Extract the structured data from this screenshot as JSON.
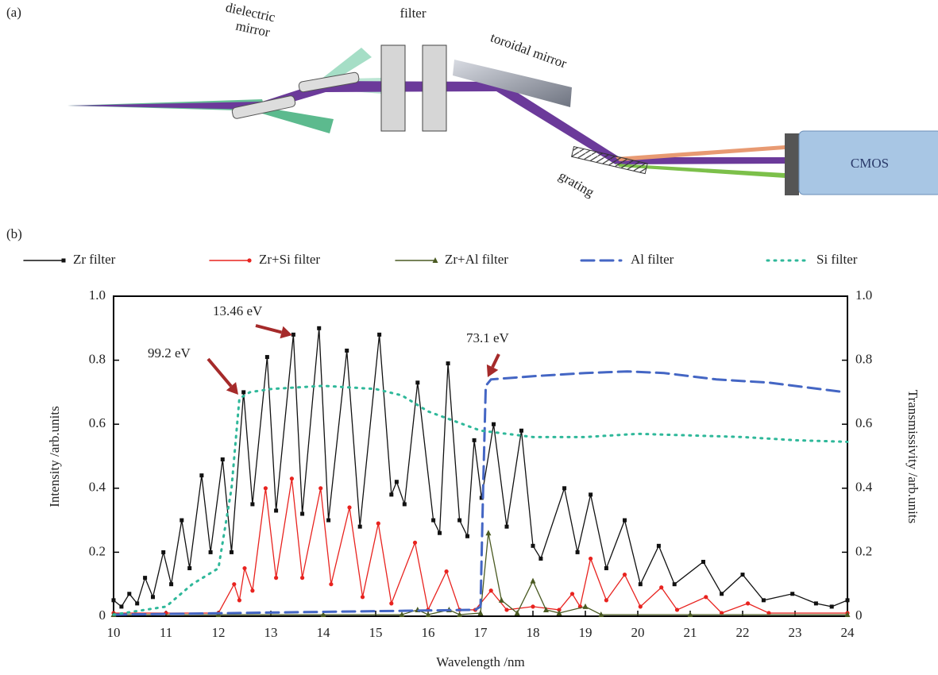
{
  "panel_a": {
    "label": "(a)",
    "mirror_label_1": "dielectric",
    "mirror_label_2": "mirror",
    "filter_label": "filter",
    "toroidal_label": "toroidal mirror",
    "grating_label": "grating",
    "detector_label": "CMOS"
  },
  "chart_data": {
    "type": "line",
    "panel_label": "(b)",
    "xlabel": "Wavelength /nm",
    "ylabel": "Intensity /arb.units",
    "y2label": "Transmissivity /arb.units",
    "xlim": [
      10,
      24
    ],
    "xticks": [
      10,
      11,
      12,
      13,
      14,
      15,
      16,
      17,
      18,
      19,
      20,
      21,
      22,
      23,
      24
    ],
    "ylim": [
      0,
      1
    ],
    "yticks": [
      0,
      0.2,
      0.4,
      0.6,
      0.8,
      {
        "value": 1,
        "label": "1.0"
      }
    ],
    "y2lim": [
      0,
      1
    ],
    "y2ticks": [
      0,
      0.2,
      0.4,
      0.6,
      0.8,
      {
        "value": 1,
        "label": "1.0"
      }
    ],
    "annotations": [
      "99.2 eV",
      "13.46 eV",
      "73.1 eV"
    ],
    "series": [
      {
        "name": "Zr filter",
        "color": "#111111",
        "marker": "square",
        "style": "solid",
        "x": [
          10.0,
          10.15,
          10.3,
          10.45,
          10.6,
          10.75,
          10.95,
          11.1,
          11.3,
          11.45,
          11.68,
          11.85,
          12.08,
          12.25,
          12.48,
          12.65,
          12.93,
          13.1,
          13.43,
          13.6,
          13.92,
          14.1,
          14.45,
          14.7,
          15.07,
          15.3,
          15.4,
          15.55,
          15.8,
          16.1,
          16.22,
          16.38,
          16.6,
          16.75,
          16.88,
          17.02,
          17.25,
          17.5,
          17.78,
          18.0,
          18.15,
          18.6,
          18.85,
          19.1,
          19.4,
          19.75,
          20.05,
          20.4,
          20.7,
          21.25,
          21.6,
          22.0,
          22.4,
          22.95,
          23.4,
          23.7,
          24.0
        ],
        "values": [
          0.05,
          0.03,
          0.07,
          0.04,
          0.12,
          0.06,
          0.2,
          0.1,
          0.3,
          0.15,
          0.44,
          0.2,
          0.49,
          0.2,
          0.7,
          0.35,
          0.81,
          0.33,
          0.88,
          0.32,
          0.9,
          0.3,
          0.83,
          0.28,
          0.88,
          0.38,
          0.42,
          0.35,
          0.73,
          0.3,
          0.26,
          0.79,
          0.3,
          0.25,
          0.55,
          0.37,
          0.6,
          0.28,
          0.58,
          0.22,
          0.18,
          0.4,
          0.2,
          0.38,
          0.15,
          0.3,
          0.1,
          0.22,
          0.1,
          0.17,
          0.07,
          0.13,
          0.05,
          0.07,
          0.04,
          0.03,
          0.05
        ]
      },
      {
        "name": "Zr+Si filter",
        "color": "#e8231f",
        "marker": "circle",
        "style": "solid",
        "x": [
          10.0,
          11.0,
          12.0,
          12.3,
          12.4,
          12.5,
          12.65,
          12.9,
          13.1,
          13.4,
          13.6,
          13.95,
          14.15,
          14.5,
          14.75,
          15.05,
          15.3,
          15.75,
          16.0,
          16.35,
          16.6,
          16.9,
          17.2,
          17.5,
          18.0,
          18.5,
          18.75,
          18.9,
          19.1,
          19.4,
          19.75,
          20.05,
          20.45,
          20.75,
          21.3,
          21.6,
          22.1,
          22.5,
          24.0
        ],
        "values": [
          0.01,
          0.01,
          0.01,
          0.1,
          0.05,
          0.15,
          0.08,
          0.4,
          0.12,
          0.43,
          0.12,
          0.4,
          0.1,
          0.34,
          0.06,
          0.29,
          0.04,
          0.23,
          0.02,
          0.14,
          0.02,
          0.02,
          0.08,
          0.02,
          0.03,
          0.02,
          0.07,
          0.03,
          0.18,
          0.05,
          0.13,
          0.03,
          0.09,
          0.02,
          0.06,
          0.01,
          0.04,
          0.01,
          0.01
        ]
      },
      {
        "name": "Zr+Al filter",
        "color": "#4a5a22",
        "marker": "triangle",
        "style": "solid",
        "x": [
          10.0,
          12.0,
          14.0,
          15.5,
          15.8,
          16.0,
          16.4,
          16.6,
          17.0,
          17.15,
          17.4,
          17.7,
          18.0,
          18.25,
          18.5,
          19.0,
          19.3,
          21.0,
          24.0
        ],
        "values": [
          0.005,
          0.005,
          0.005,
          0.005,
          0.02,
          0.005,
          0.02,
          0.005,
          0.01,
          0.26,
          0.05,
          0.01,
          0.11,
          0.02,
          0.01,
          0.03,
          0.005,
          0.005,
          0.005
        ]
      },
      {
        "name": "Al filter",
        "color": "#4466c4",
        "marker": "none",
        "style": "dashed",
        "axis": "y2",
        "x": [
          10.0,
          16.9,
          17.0,
          17.05,
          17.1,
          17.2,
          18.0,
          19.0,
          19.8,
          20.5,
          21.5,
          22.5,
          23.95
        ],
        "values": [
          0.005,
          0.02,
          0.03,
          0.4,
          0.72,
          0.74,
          0.75,
          0.76,
          0.765,
          0.76,
          0.74,
          0.73,
          0.7
        ]
      },
      {
        "name": "Si filter",
        "color": "#2fb89a",
        "marker": "none",
        "style": "dotted",
        "axis": "y2",
        "x": [
          10.0,
          11.0,
          11.5,
          12.0,
          12.25,
          12.4,
          12.6,
          13.0,
          14.0,
          15.0,
          15.5,
          16.0,
          16.5,
          17.0,
          17.5,
          18.0,
          19.0,
          20.0,
          21.0,
          22.0,
          23.0,
          24.0
        ],
        "values": [
          0.005,
          0.03,
          0.1,
          0.15,
          0.4,
          0.68,
          0.7,
          0.71,
          0.72,
          0.71,
          0.69,
          0.64,
          0.61,
          0.58,
          0.57,
          0.56,
          0.56,
          0.57,
          0.565,
          0.56,
          0.55,
          0.545
        ]
      }
    ]
  }
}
